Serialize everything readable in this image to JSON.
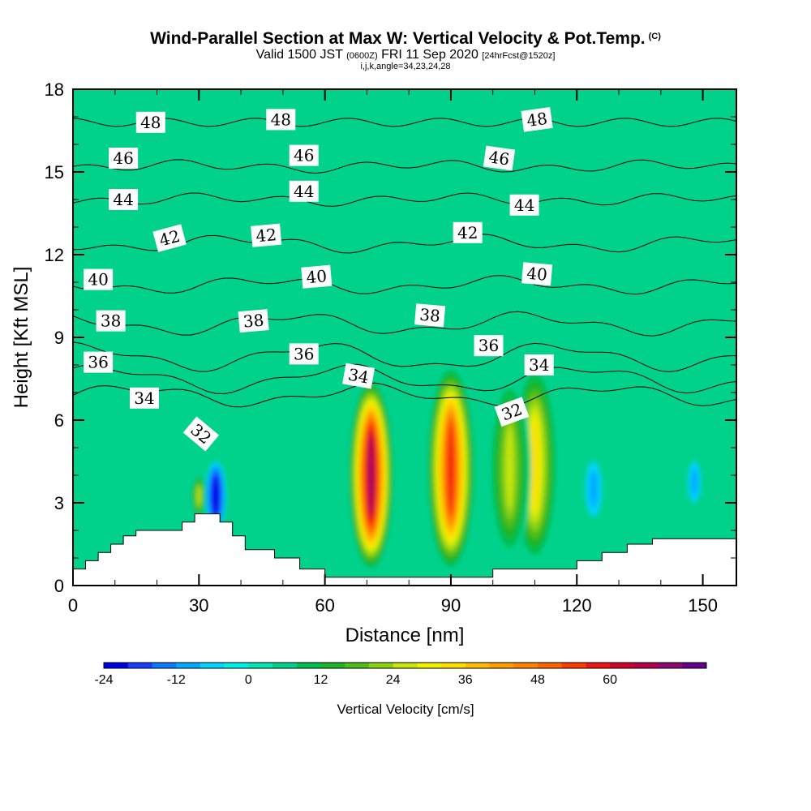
{
  "header": {
    "title": "Wind-Parallel Section at Max W: Vertical Velocity & Pot.Temp.",
    "title_unit": "(C)",
    "valid_main": "Valid 1500 JST",
    "valid_utc": "(0600Z)",
    "valid_date": "FRI 11 Sep 2020",
    "forecast": "[24hrFcst@1520z]",
    "indices": "i,j,k,angle=34,23,24,28"
  },
  "chart_data": {
    "type": "heatmap",
    "xlabel": "Distance [nm]",
    "ylabel": "Height [Kft MSL]",
    "xlim": [
      0,
      158
    ],
    "ylim": [
      0,
      18
    ],
    "xticks": [
      "0",
      "30",
      "60",
      "90",
      "120",
      "150"
    ],
    "yticks": [
      "0",
      "3",
      "6",
      "9",
      "12",
      "15",
      "18"
    ],
    "colorbar": {
      "label": "Vertical Velocity [cm/s]",
      "ticks": [
        "-24",
        "-12",
        "0",
        "12",
        "24",
        "36",
        "48",
        "60"
      ],
      "min": -24,
      "max": 70,
      "step": 4,
      "colors": [
        "#0000e6",
        "#1a3cff",
        "#0a78ff",
        "#00aaff",
        "#00d4ff",
        "#00f0e8",
        "#00e6b4",
        "#00d28c",
        "#00c050",
        "#1eb428",
        "#50be1e",
        "#8cd214",
        "#c8e60a",
        "#f0f000",
        "#ffdc00",
        "#ffbe00",
        "#ffa000",
        "#ff8200",
        "#ff6400",
        "#ff3c00",
        "#f01414",
        "#d2002d",
        "#b4004b",
        "#8c0a6e",
        "#64008c"
      ]
    },
    "updrafts": [
      {
        "x_nm": 71,
        "z_kft_range": [
          0.5,
          7.5
        ],
        "peak_cms": 66
      },
      {
        "x_nm": 90,
        "z_kft_range": [
          0.5,
          8.0
        ],
        "peak_cms": 54
      },
      {
        "x_nm": 110,
        "z_kft_range": [
          0.8,
          8.0
        ],
        "peak_cms": 30
      },
      {
        "x_nm": 104,
        "z_kft_range": [
          1.0,
          7.5
        ],
        "peak_cms": 22
      },
      {
        "x_nm": 30,
        "z_kft_range": [
          2.5,
          4.0
        ],
        "peak_cms": 22
      }
    ],
    "downdrafts": [
      {
        "x_nm": 34,
        "z_kft_range": [
          2.0,
          4.5
        ],
        "peak_cms": -24
      },
      {
        "x_nm": 124,
        "z_kft_range": [
          2.5,
          4.5
        ],
        "peak_cms": -8
      },
      {
        "x_nm": 148,
        "z_kft_range": [
          3.0,
          4.5
        ],
        "peak_cms": -8
      }
    ],
    "theta_contours": [
      {
        "value": 32,
        "label": "32",
        "level_kft": 6.9,
        "rise": 0.3
      },
      {
        "value": 34,
        "label": "34",
        "level_kft": 7.5,
        "rise": 0.4
      },
      {
        "value": 36,
        "label": "36",
        "level_kft": 8.3,
        "rise": 0.4
      },
      {
        "value": 38,
        "label": "38",
        "level_kft": 9.5,
        "rise": 0.3
      },
      {
        "value": 40,
        "label": "40",
        "level_kft": 10.9,
        "rise": 0.2
      },
      {
        "value": 42,
        "label": "42",
        "level_kft": 12.4,
        "rise": 0.2
      },
      {
        "value": 44,
        "label": "44",
        "level_kft": 14.0,
        "rise": 0.1
      },
      {
        "value": 46,
        "label": "46",
        "level_kft": 15.2,
        "rise": 0.1
      },
      {
        "value": 48,
        "label": "48",
        "level_kft": 16.8,
        "rise": 0.0
      }
    ],
    "theta_labels": [
      {
        "text": "48",
        "x_nm": 18.5,
        "z_kft": 16.8,
        "angle": 0
      },
      {
        "text": "48",
        "x_nm": 49.5,
        "z_kft": 16.9,
        "angle": 0
      },
      {
        "text": "48",
        "x_nm": 110.5,
        "z_kft": 16.9,
        "angle": -8
      },
      {
        "text": "46",
        "x_nm": 12,
        "z_kft": 15.5,
        "angle": 0
      },
      {
        "text": "46",
        "x_nm": 55,
        "z_kft": 15.6,
        "angle": 0
      },
      {
        "text": "46",
        "x_nm": 101.5,
        "z_kft": 15.5,
        "angle": 8
      },
      {
        "text": "44",
        "x_nm": 12,
        "z_kft": 14.0,
        "angle": 0
      },
      {
        "text": "44",
        "x_nm": 55,
        "z_kft": 14.3,
        "angle": 0
      },
      {
        "text": "44",
        "x_nm": 107.5,
        "z_kft": 13.8,
        "angle": 0
      },
      {
        "text": "42",
        "x_nm": 23,
        "z_kft": 12.6,
        "angle": -15
      },
      {
        "text": "42",
        "x_nm": 46,
        "z_kft": 12.7,
        "angle": -5
      },
      {
        "text": "42",
        "x_nm": 94,
        "z_kft": 12.8,
        "angle": 0
      },
      {
        "text": "40",
        "x_nm": 6,
        "z_kft": 11.1,
        "angle": 0
      },
      {
        "text": "40",
        "x_nm": 58,
        "z_kft": 11.2,
        "angle": -5
      },
      {
        "text": "40",
        "x_nm": 110.5,
        "z_kft": 11.3,
        "angle": 5
      },
      {
        "text": "38",
        "x_nm": 9,
        "z_kft": 9.6,
        "angle": 0
      },
      {
        "text": "38",
        "x_nm": 43,
        "z_kft": 9.6,
        "angle": -5
      },
      {
        "text": "38",
        "x_nm": 85,
        "z_kft": 9.8,
        "angle": 5
      },
      {
        "text": "36",
        "x_nm": 6,
        "z_kft": 8.1,
        "angle": 0
      },
      {
        "text": "36",
        "x_nm": 55,
        "z_kft": 8.4,
        "angle": 0
      },
      {
        "text": "36",
        "x_nm": 99,
        "z_kft": 8.7,
        "angle": 0
      },
      {
        "text": "34",
        "x_nm": 17,
        "z_kft": 6.8,
        "angle": 0
      },
      {
        "text": "34",
        "x_nm": 68,
        "z_kft": 7.6,
        "angle": 10
      },
      {
        "text": "34",
        "x_nm": 111,
        "z_kft": 8.0,
        "angle": 0
      },
      {
        "text": "32",
        "x_nm": 30.5,
        "z_kft": 5.5,
        "angle": 40
      },
      {
        "text": "32",
        "x_nm": 104.5,
        "z_kft": 6.3,
        "angle": -20
      }
    ],
    "terrain_kft": [
      [
        0,
        0.6
      ],
      [
        3,
        0.6
      ],
      [
        3,
        0.9
      ],
      [
        6,
        0.9
      ],
      [
        6,
        1.2
      ],
      [
        9,
        1.2
      ],
      [
        9,
        1.5
      ],
      [
        12,
        1.5
      ],
      [
        12,
        1.8
      ],
      [
        15,
        1.8
      ],
      [
        15,
        2.0
      ],
      [
        26,
        2.0
      ],
      [
        26,
        2.3
      ],
      [
        29,
        2.3
      ],
      [
        29,
        2.6
      ],
      [
        35,
        2.6
      ],
      [
        35,
        2.3
      ],
      [
        38,
        2.3
      ],
      [
        38,
        1.8
      ],
      [
        41,
        1.8
      ],
      [
        41,
        1.3
      ],
      [
        48,
        1.3
      ],
      [
        48,
        1.0
      ],
      [
        54,
        1.0
      ],
      [
        54,
        0.6
      ],
      [
        60,
        0.6
      ],
      [
        60,
        0.3
      ],
      [
        100,
        0.3
      ],
      [
        100,
        0.6
      ],
      [
        120,
        0.6
      ],
      [
        120,
        0.9
      ],
      [
        126,
        0.9
      ],
      [
        126,
        1.2
      ],
      [
        132,
        1.2
      ],
      [
        132,
        1.5
      ],
      [
        138,
        1.5
      ],
      [
        138,
        1.7
      ],
      [
        158,
        1.7
      ]
    ]
  }
}
